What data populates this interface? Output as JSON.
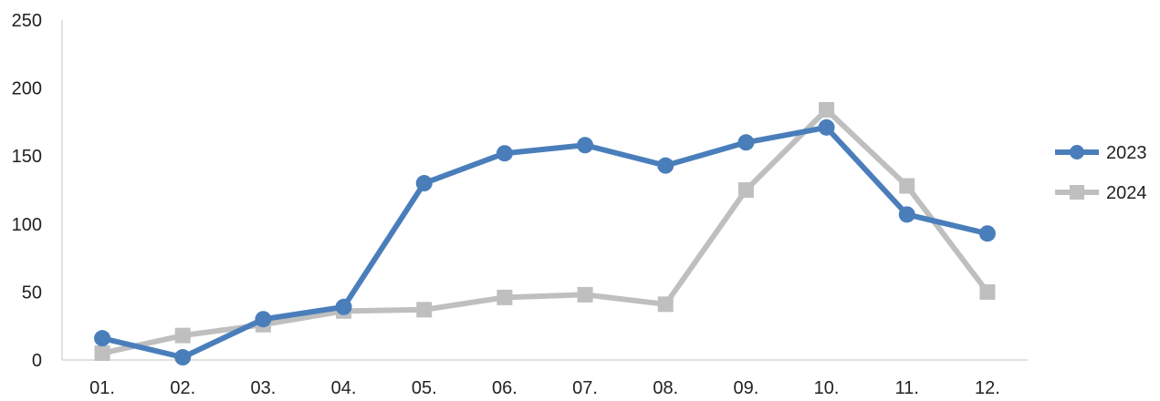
{
  "chart_data": {
    "type": "line",
    "title": "",
    "xlabel": "",
    "ylabel": "",
    "categories": [
      "01.",
      "02.",
      "03.",
      "04.",
      "05.",
      "06.",
      "07.",
      "08.",
      "09.",
      "10.",
      "11.",
      "12."
    ],
    "ylim": [
      0,
      250
    ],
    "yticks": [
      "0",
      "50",
      "100",
      "150",
      "200",
      "250"
    ],
    "grid": false,
    "legend_position": "right",
    "series": [
      {
        "name": "2023",
        "color": "#4a7ebb",
        "marker": "circle",
        "values": [
          16,
          2,
          30,
          39,
          130,
          152,
          158,
          143,
          160,
          171,
          107,
          93
        ]
      },
      {
        "name": "2024",
        "color": "#bfbfbf",
        "marker": "square",
        "values": [
          5,
          18,
          26,
          36,
          37,
          46,
          48,
          41,
          125,
          184,
          128,
          50
        ]
      }
    ]
  }
}
